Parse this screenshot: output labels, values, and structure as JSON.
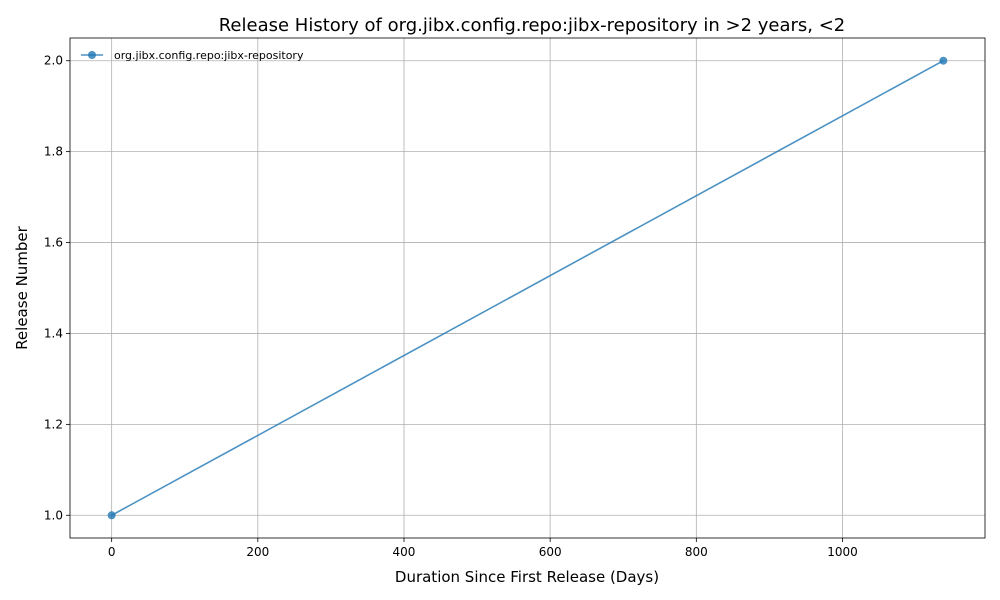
{
  "chart_data": {
    "type": "line",
    "title": "Release History of org.jibx.config.repo:jibx-repository in >2 years, <2",
    "xlabel": "Duration Since First Release (Days)",
    "ylabel": "Release Number",
    "xlim": [
      -57,
      1195
    ],
    "ylim": [
      0.95,
      2.05
    ],
    "xticks": [
      0,
      200,
      400,
      600,
      800,
      1000
    ],
    "yticks": [
      1.0,
      1.2,
      1.4,
      1.6,
      1.8,
      2.0
    ],
    "xtick_labels": [
      "0",
      "200",
      "400",
      "600",
      "800",
      "1000"
    ],
    "ytick_labels": [
      "1.0",
      "1.2",
      "1.4",
      "1.6",
      "1.8",
      "2.0"
    ],
    "grid": true,
    "legend_position": "top-left",
    "series": [
      {
        "name": "org.jibx.config.repo:jibx-repository",
        "color": "#1f77b4",
        "x": [
          0,
          1138
        ],
        "y": [
          1,
          2
        ]
      }
    ]
  }
}
